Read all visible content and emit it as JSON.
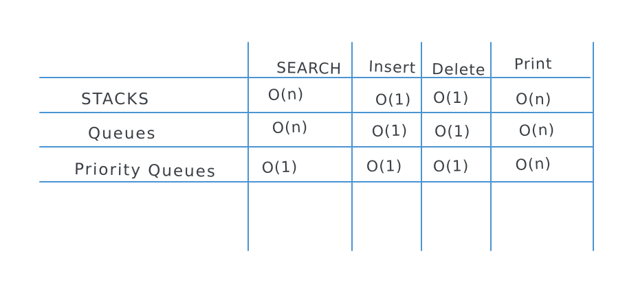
{
  "table": {
    "columns": [
      "SEARCH",
      "Insert",
      "Delete",
      "Print"
    ],
    "rows": [
      {
        "label": "STACKS",
        "cells": [
          "O(n)",
          "O(1)",
          "O(1)",
          "O(n)"
        ]
      },
      {
        "label": "Queues",
        "cells": [
          "O(n)",
          "O(1)",
          "O(1)",
          "O(n)"
        ]
      },
      {
        "label": "Priority Queues",
        "cells": [
          "O(1)",
          "O(1)",
          "O(1)",
          "O(n)"
        ]
      }
    ]
  },
  "colors": {
    "grid": "#4a94d2",
    "ink": "#3a3f44",
    "background": "#ffffff"
  }
}
